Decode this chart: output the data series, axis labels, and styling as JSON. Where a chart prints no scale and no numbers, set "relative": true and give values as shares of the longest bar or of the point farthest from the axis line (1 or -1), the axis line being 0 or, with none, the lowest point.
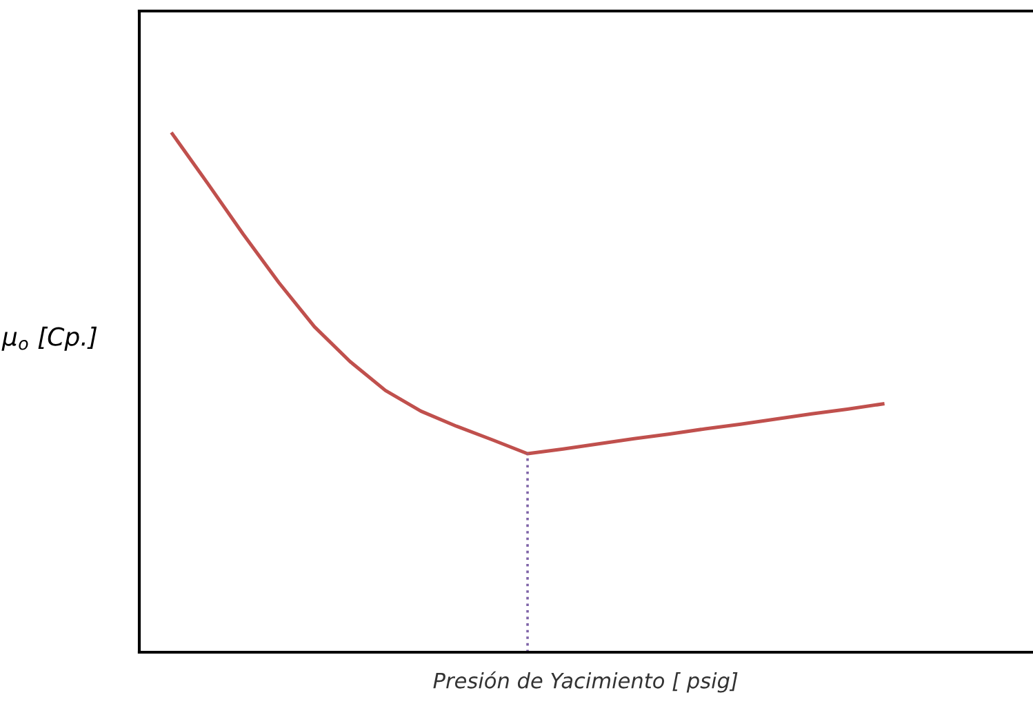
{
  "chart_data": {
    "type": "line",
    "relative": true,
    "xlabel": "Presión de Yacimiento [ psig]",
    "ylabel": "μ$_{o}$ [Cp.]",
    "categories": [
      null,
      null,
      null,
      null,
      null,
      null,
      null,
      null,
      null,
      null,
      null,
      null,
      null,
      null,
      null,
      null,
      null,
      null,
      null,
      null,
      null
    ],
    "series": [
      {
        "color": "#c0504d",
        "values": [
          1.0,
          0.904,
          0.806,
          0.713,
          0.628,
          0.561,
          0.505,
          0.465,
          0.436,
          0.41,
          0.383,
          0.392,
          0.402,
          0.412,
          0.421,
          0.431,
          0.44,
          0.45,
          0.46,
          0.469,
          0.479
        ]
      }
    ],
    "grid": false,
    "tick_labels": false
  }
}
